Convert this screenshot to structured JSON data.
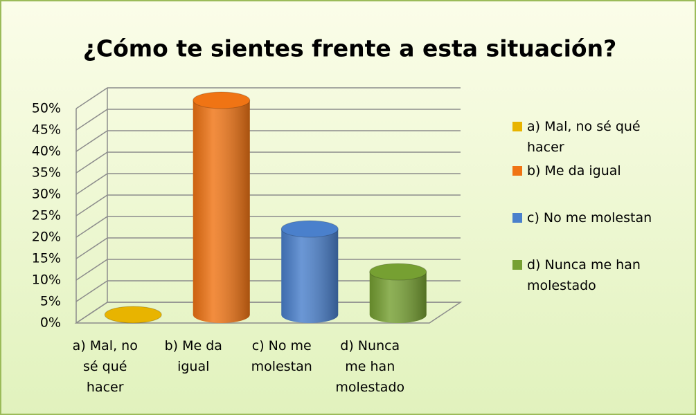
{
  "chart_data": {
    "type": "bar3d",
    "title": "¿Cómo te sientes frente a esta situación?",
    "categories": [
      "a) Mal, no sé qué hacer",
      "b) Me da igual",
      "c) No me molestan",
      "d) Nunca me han molestado"
    ],
    "values": [
      0,
      50,
      20,
      10
    ],
    "colors": [
      "#e8b400",
      "#f07414",
      "#4a80cc",
      "#76a032"
    ],
    "ylim": [
      0,
      50
    ],
    "yticks": [
      {
        "value": 0,
        "label": "0%"
      },
      {
        "value": 5,
        "label": "5%"
      },
      {
        "value": 10,
        "label": "10%"
      },
      {
        "value": 15,
        "label": "15%"
      },
      {
        "value": 20,
        "label": "20%"
      },
      {
        "value": 25,
        "label": "25%"
      },
      {
        "value": 30,
        "label": "30%"
      },
      {
        "value": 35,
        "label": "35%"
      },
      {
        "value": 40,
        "label": "40%"
      },
      {
        "value": 45,
        "label": "45%"
      },
      {
        "value": 50,
        "label": "50%"
      }
    ],
    "grid": true,
    "legend": "right"
  }
}
